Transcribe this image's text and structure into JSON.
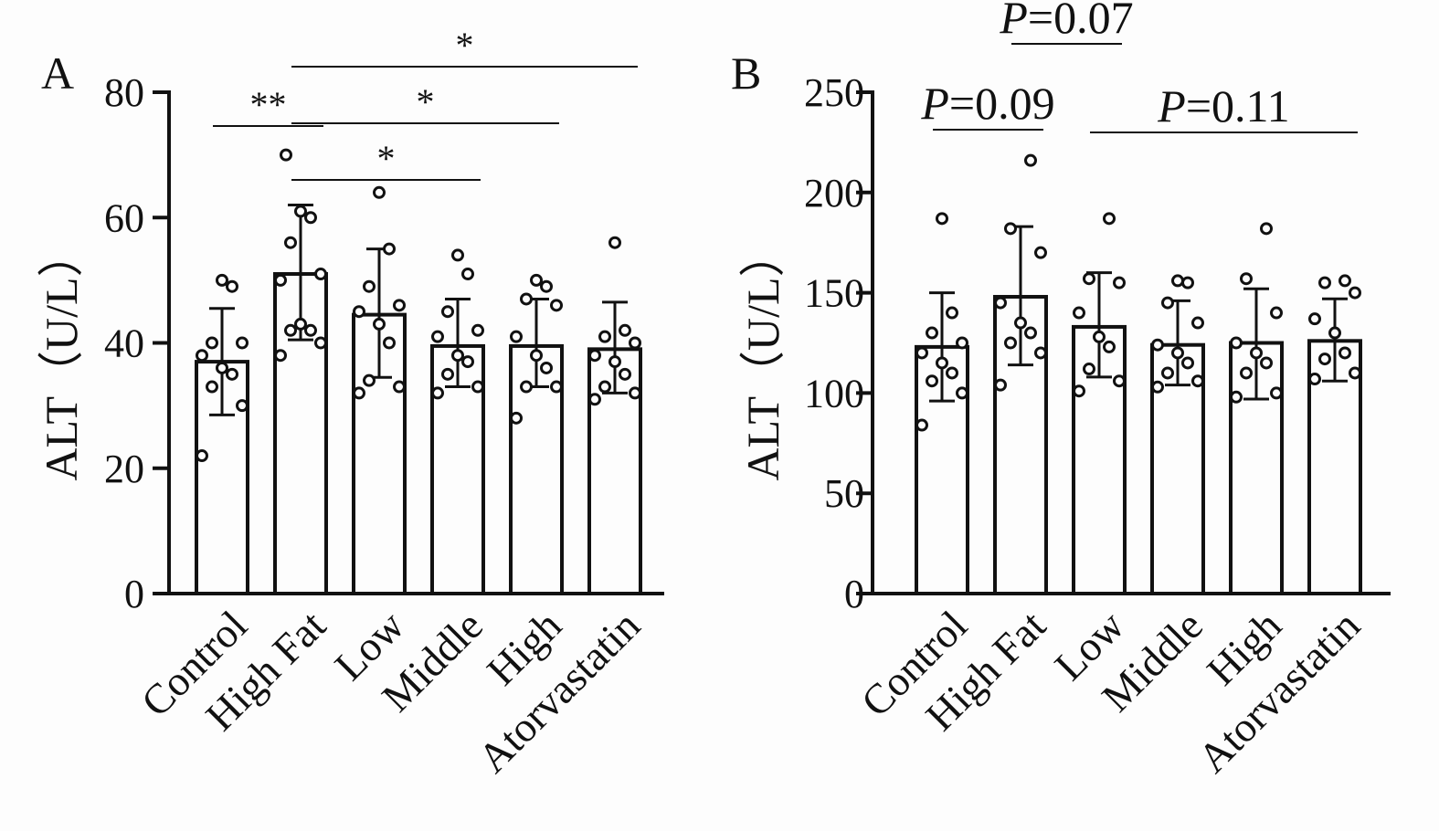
{
  "figure": {
    "background": "#fdfdfd",
    "ink": "#111111"
  },
  "chart_data": [
    {
      "type": "bar",
      "panel_label": "A",
      "ylabel": "ALT（U/L）",
      "xlabel": "",
      "ylim": [
        0,
        80
      ],
      "yticks": [
        "0",
        "20",
        "40",
        "60",
        "80"
      ],
      "categories": [
        "Control",
        "High Fat",
        "Low",
        "Middle",
        "High",
        "Atorvastatin"
      ],
      "values": [
        37,
        51,
        44.5,
        39.5,
        39.5,
        39
      ],
      "error": [
        [
          28.5,
          45.5
        ],
        [
          40.5,
          62
        ],
        [
          34.5,
          55
        ],
        [
          33,
          47
        ],
        [
          33,
          47
        ],
        [
          32,
          46.5
        ]
      ],
      "points": [
        [
          22,
          30,
          33,
          35,
          36,
          38,
          40,
          40,
          49,
          50
        ],
        [
          38,
          40,
          42,
          42,
          43,
          50,
          51,
          56,
          60,
          61,
          70
        ],
        [
          32,
          33,
          34,
          40,
          43,
          45,
          46,
          49,
          55,
          64
        ],
        [
          32,
          33,
          35,
          37,
          38,
          41,
          42,
          45,
          51,
          54
        ],
        [
          28,
          33,
          33,
          36,
          38,
          41,
          46,
          47,
          49,
          50
        ],
        [
          31,
          32,
          33,
          35,
          37,
          38,
          40,
          41,
          42,
          56
        ]
      ],
      "comparisons": [
        {
          "from": "Control",
          "to": "High Fat",
          "label": "**"
        },
        {
          "from": "High Fat",
          "to": "Middle",
          "label": "*"
        },
        {
          "from": "High Fat",
          "to": "High",
          "label": "*"
        },
        {
          "from": "High Fat",
          "to": "Atorvastatin",
          "label": "*"
        }
      ],
      "grid": false,
      "legend": "none"
    },
    {
      "type": "bar",
      "panel_label": "B",
      "ylabel": "ALT（U/L）",
      "xlabel": "",
      "ylim": [
        0,
        250
      ],
      "yticks": [
        "0",
        "50",
        "100",
        "150",
        "200",
        "250"
      ],
      "categories": [
        "Control",
        "High Fat",
        "Low",
        "Middle",
        "High",
        "Atorvastatin"
      ],
      "values": [
        123,
        148,
        133,
        124,
        125,
        126
      ],
      "error": [
        [
          96,
          150
        ],
        [
          114,
          183
        ],
        [
          108,
          160
        ],
        [
          104,
          146
        ],
        [
          97,
          152
        ],
        [
          106,
          147
        ]
      ],
      "points": [
        [
          84,
          100,
          106,
          110,
          115,
          120,
          125,
          130,
          140,
          187
        ],
        [
          104,
          120,
          125,
          130,
          135,
          145,
          170,
          182,
          216
        ],
        [
          101,
          106,
          112,
          123,
          128,
          140,
          155,
          157,
          187
        ],
        [
          103,
          106,
          110,
          115,
          120,
          124,
          135,
          145,
          155,
          156
        ],
        [
          98,
          100,
          110,
          115,
          120,
          125,
          140,
          157,
          182
        ],
        [
          107,
          110,
          117,
          120,
          130,
          137,
          150,
          155,
          156
        ]
      ],
      "comparisons": [
        {
          "from": "Control",
          "to": "High Fat",
          "label": "P=0.09"
        },
        {
          "from": "High Fat",
          "to": "Low",
          "label": "P=0.07"
        },
        {
          "from": "Low",
          "to": "Atorvastatin",
          "label": "P=0.11"
        }
      ],
      "grid": false,
      "legend": "none"
    }
  ]
}
